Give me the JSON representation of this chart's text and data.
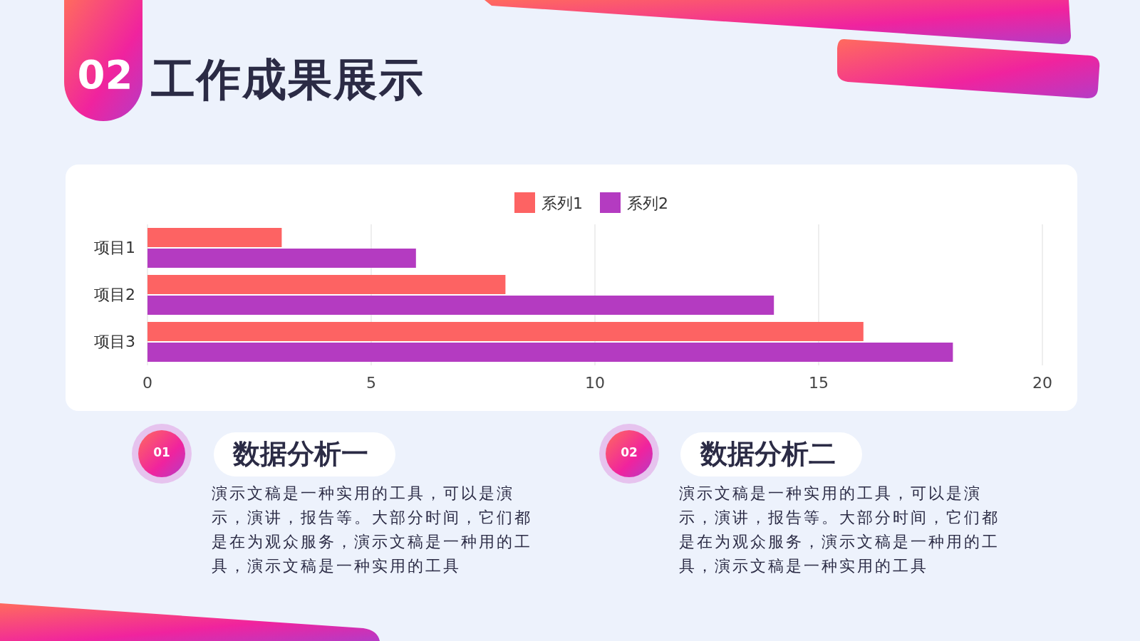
{
  "chart_data": {
    "type": "bar",
    "orientation": "horizontal",
    "title": "工作成果展示",
    "categories": [
      "项目1",
      "项目2",
      "项目3"
    ],
    "series": [
      {
        "name": "系列1",
        "color": "#fd6363",
        "values": [
          3,
          8,
          16
        ]
      },
      {
        "name": "系列2",
        "color": "#b43bc1",
        "values": [
          6,
          14,
          18
        ]
      }
    ],
    "xlim": [
      0,
      20
    ],
    "xticks": [
      0,
      5,
      10,
      15,
      20
    ],
    "grid": "x",
    "legend": "top",
    "annotations": [
      "02",
      "01",
      "数据分析一",
      "演示文稿是一种实用的工具，可以是演示，演讲，报告等。大部分时间，它们都是在为观众服务，演示文稿是一种用的工具，演示文稿是一种实用的工具",
      "02",
      "数据分析二",
      "演示文稿是一种实用的工具，可以是演示，演讲，报告等。大部分时间，它们都是在为观众服务，演示文稿是一种用的工具，演示文稿是一种实用的工具"
    ]
  }
}
